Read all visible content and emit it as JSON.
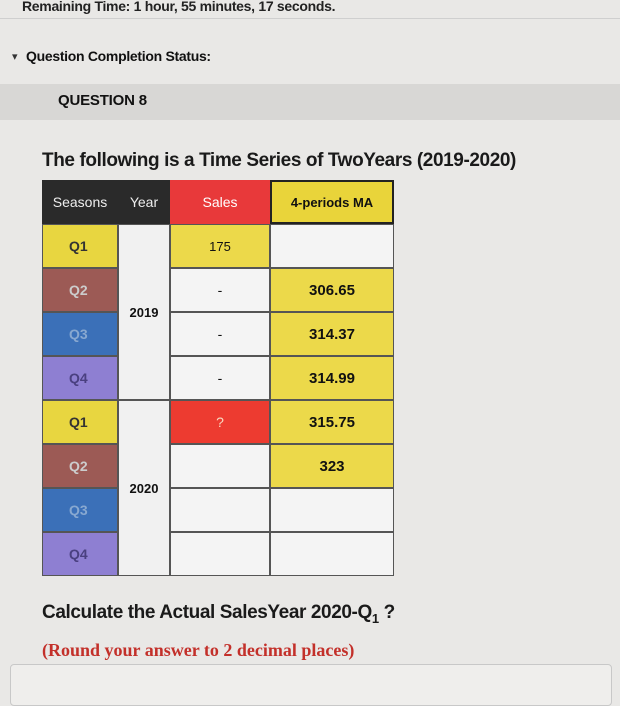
{
  "header": {
    "remaining_time": "Remaining Time: 1 hour, 55 minutes, 17 seconds."
  },
  "status": {
    "toggle": "▾",
    "label": "Question Completion Status:"
  },
  "question": {
    "number": "QUESTION 8",
    "prompt": "The following is a Time Series of TwoYears (2019-2020)",
    "calc_prefix": "Calculate the Actual SalesYear 2020-Q",
    "calc_sub": "1",
    "calc_suffix": " ?",
    "round_note": "(Round your answer to 2 decimal places)"
  },
  "table": {
    "headers": {
      "seasons": "Seasons",
      "year": "Year",
      "sales": "Sales",
      "ma": "4-periods MA"
    },
    "years": [
      "2019",
      "2020"
    ],
    "rows": [
      {
        "season": "Q1",
        "sales": "175",
        "ma": ""
      },
      {
        "season": "Q2",
        "sales": "-",
        "ma": "306.65"
      },
      {
        "season": "Q3",
        "sales": "-",
        "ma": "314.37"
      },
      {
        "season": "Q4",
        "sales": "-",
        "ma": "314.99"
      },
      {
        "season": "Q1",
        "sales": "?",
        "ma": "315.75"
      },
      {
        "season": "Q2",
        "sales": "",
        "ma": "323"
      },
      {
        "season": "Q3",
        "sales": "",
        "ma": ""
      },
      {
        "season": "Q4",
        "sales": "",
        "ma": ""
      }
    ]
  },
  "colors": {
    "q1": "#e8d640",
    "q2": "#9c5a55",
    "q3": "#3b70b8",
    "q4": "#8e7fd2",
    "sales_header": "#e8393a",
    "ma_fill": "#ecd94a",
    "unknown_cell": "#ed3b30"
  }
}
